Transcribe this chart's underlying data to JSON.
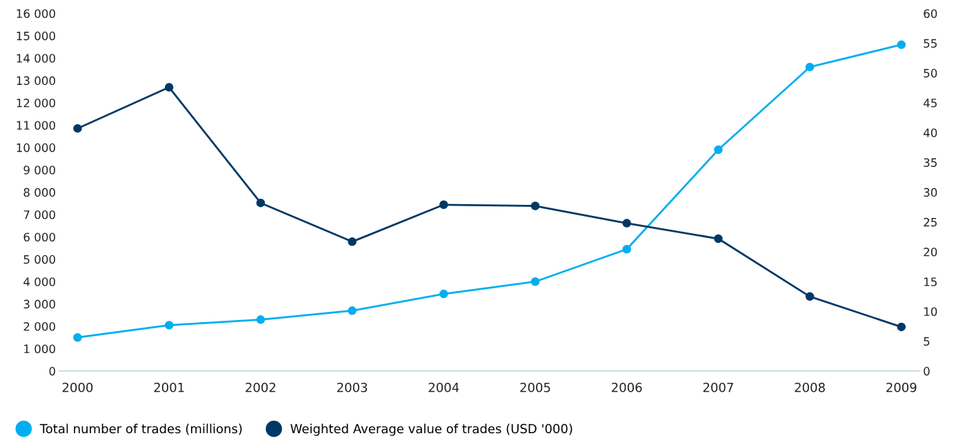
{
  "chart_data": {
    "type": "line",
    "categories": [
      "2000",
      "2001",
      "2002",
      "2003",
      "2004",
      "2005",
      "2006",
      "2007",
      "2008",
      "2009"
    ],
    "series": [
      {
        "name": "Total number of trades (millions)",
        "color": "#00aeef",
        "values": [
          1500,
          2050,
          2300,
          2700,
          3450,
          4000,
          5450,
          9900,
          13600,
          14600
        ]
      },
      {
        "name": "Weighted Average value of trades (USD '000)",
        "color": "#003865",
        "axis": "y2",
        "values": [
          40.7,
          47.6,
          28.2,
          21.7,
          27.9,
          27.7,
          24.8,
          22.2,
          12.5,
          7.4
        ]
      }
    ],
    "ylim": [
      0,
      16000
    ],
    "yticks": [
      0,
      {
        "value": 1000,
        "label": "1 000"
      },
      {
        "value": 2000,
        "label": "2 000"
      },
      {
        "value": 3000,
        "label": "3 000"
      },
      {
        "value": 4000,
        "label": "4 000"
      },
      {
        "value": 5000,
        "label": "5 000"
      },
      {
        "value": 6000,
        "label": "6 000"
      },
      {
        "value": 7000,
        "label": "7 000"
      },
      {
        "value": 8000,
        "label": "8 000"
      },
      {
        "value": 9000,
        "label": "9 000"
      },
      {
        "value": 10000,
        "label": "10 000"
      },
      {
        "value": 11000,
        "label": "11 000"
      },
      {
        "value": 12000,
        "label": "12 000"
      },
      {
        "value": 13000,
        "label": "13 000"
      },
      {
        "value": 14000,
        "label": "14 000"
      },
      {
        "value": 15000,
        "label": "15 000"
      },
      {
        "value": 16000,
        "label": "16 000"
      }
    ],
    "y2lim": [
      0,
      60
    ],
    "y2ticks": [
      0,
      5,
      10,
      15,
      20,
      25,
      30,
      35,
      40,
      45,
      50,
      55,
      60
    ],
    "marker": "circle",
    "line_style": "solid",
    "grid": false,
    "legend": "bottom left"
  }
}
